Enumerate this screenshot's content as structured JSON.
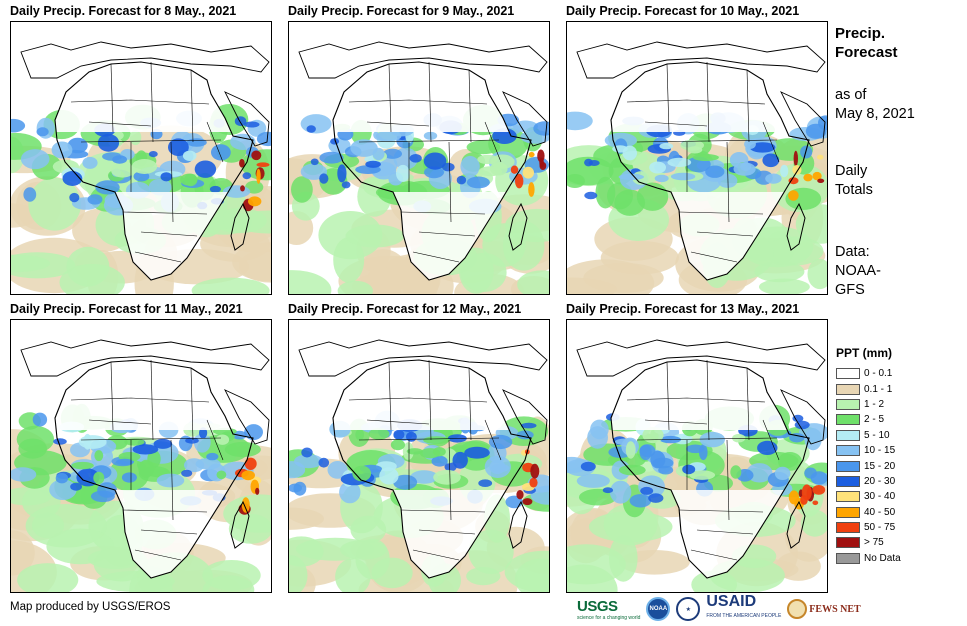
{
  "panels": [
    {
      "title": "Daily Precip. Forecast for 8 May., 2021"
    },
    {
      "title": "Daily Precip. Forecast for 9 May., 2021"
    },
    {
      "title": "Daily Precip. Forecast for 10 May., 2021"
    },
    {
      "title": "Daily Precip. Forecast for 11 May., 2021"
    },
    {
      "title": "Daily Precip. Forecast for 12 May., 2021"
    },
    {
      "title": "Daily Precip. Forecast for 13 May., 2021"
    }
  ],
  "side": {
    "title_line1": "Precip.",
    "title_line2": "Forecast",
    "asof_line1": "as of",
    "asof_line2": "May 8, 2021",
    "totals_line1": "Daily",
    "totals_line2": "Totals",
    "data_line1": "Data:",
    "data_line2": "NOAA-",
    "data_line3": "GFS"
  },
  "legend": {
    "title": "PPT (mm)",
    "items": [
      {
        "label": "0 - 0.1",
        "color": "#ffffff"
      },
      {
        "label": "0.1 - 1",
        "color": "#e8d6b4"
      },
      {
        "label": "1 - 2",
        "color": "#b8f2b0"
      },
      {
        "label": "2 - 5",
        "color": "#6fe06a"
      },
      {
        "label": "5 - 10",
        "color": "#b4ecf4"
      },
      {
        "label": "10 - 15",
        "color": "#86c2f2"
      },
      {
        "label": "15 - 20",
        "color": "#4a96ec"
      },
      {
        "label": "20 - 30",
        "color": "#1c5ee0"
      },
      {
        "label": "30 - 40",
        "color": "#ffe27a"
      },
      {
        "label": "40 - 50",
        "color": "#ffa500"
      },
      {
        "label": "50 - 75",
        "color": "#f04010"
      },
      {
        "label": "> 75",
        "color": "#a01010"
      },
      {
        "label": "No Data",
        "color": "#999999"
      }
    ]
  },
  "credit": "Map produced by USGS/EROS",
  "logos": {
    "usgs": "USGS",
    "usgs_tagline": "science for a changing world",
    "noaa": "NOAA",
    "usaid": "USAID",
    "usaid_tagline": "FROM THE AMERICAN PEOPLE",
    "fews": "FEWS NET"
  }
}
